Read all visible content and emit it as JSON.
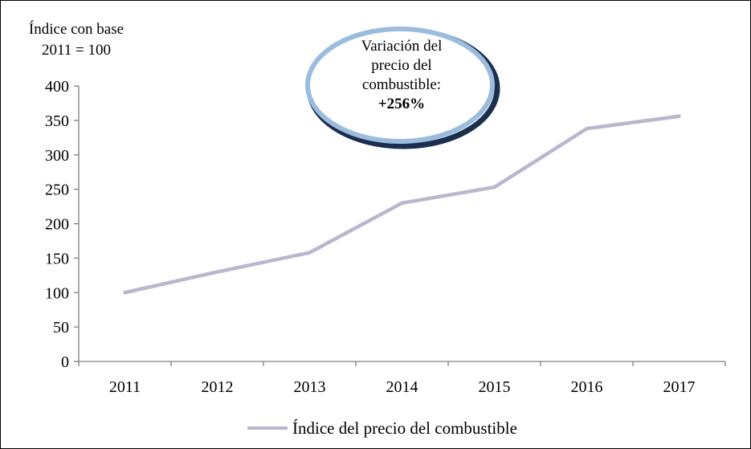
{
  "chart_data": {
    "type": "line",
    "ylabel_line1": "Índice con base",
    "ylabel_line2": "2011 = 100",
    "categories": [
      "2011",
      "2012",
      "2013",
      "2014",
      "2015",
      "2016",
      "2017"
    ],
    "y_ticks": [
      "0",
      "50",
      "100",
      "150",
      "200",
      "250",
      "300",
      "350",
      "400"
    ],
    "ylim": [
      0,
      400
    ],
    "grid": false,
    "legend_position": "bottom",
    "series": [
      {
        "name": "Índice del precio del combustible",
        "values": [
          100,
          130,
          158,
          230,
          253,
          338,
          356
        ]
      }
    ],
    "annotation": {
      "lines": [
        "Variación del",
        "precio del",
        "combustible:"
      ],
      "value": "+256%"
    }
  },
  "colors": {
    "line": "#bdb5d0",
    "ellipse_dark": "#1c2e4e",
    "ellipse_light": "#9bbcde"
  }
}
